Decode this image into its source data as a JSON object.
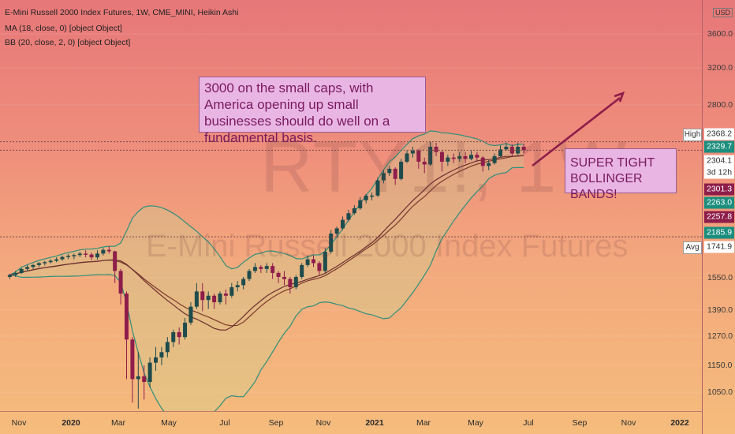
{
  "legend": {
    "title": "E-Mini Russell 2000 Index Futures, 1W, CME_MINI, Heikin Ashi",
    "ma": "MA (18, close, 0) [object Object]",
    "bb": "BB (20, close, 2, 0) [object Object]"
  },
  "watermark": {
    "symbol": "RTY1!, 1W",
    "description": "E-Mini Russell 2000 Index Futures"
  },
  "annotations": {
    "note1": "3000 on the small caps, with America opening up small businesses should do well on a fundamental basis.",
    "note2": "SUPER TIGHT BOLLINGER BANDS!"
  },
  "currency": "USD",
  "price_axis": {
    "ticks": [
      "3600.0",
      "3200.0",
      "2800.0",
      "1550.0",
      "1390.0",
      "1270.0",
      "1150.0",
      "1050.0"
    ],
    "badges": [
      {
        "label": "High",
        "value": "2368.2"
      },
      {
        "value": "2329.7",
        "color": "#1b8e7e"
      },
      {
        "value": "2304.1",
        "color": "#ffffff"
      },
      {
        "value": "3d 12h"
      },
      {
        "value": "2301.3",
        "color": "#8e1d4a"
      },
      {
        "value": "2263.0",
        "color": "#1b8e7e"
      },
      {
        "value": "2257.8",
        "color": "#8e1d4a"
      },
      {
        "value": "2185.9",
        "color": "#1b8e7e"
      },
      {
        "label": "Avg",
        "value": "1741.9"
      }
    ]
  },
  "time_axis": [
    "Nov",
    "2020",
    "Mar",
    "May",
    "Jul",
    "Sep",
    "Nov",
    "2021",
    "Mar",
    "May",
    "Jul",
    "Sep",
    "Nov",
    "2022"
  ],
  "colors": {
    "up": "#1e4b4c",
    "down": "#8e1d4a",
    "band": "#2f8f7a",
    "ma": "#6a3030",
    "arrow": "#8e1d4a"
  },
  "chart_data": {
    "type": "candlestick",
    "title": "E-Mini Russell 2000 Index Futures, 1W, CME_MINI, Heikin Ashi",
    "symbol": "RTY1!",
    "interval": "1W",
    "style": "Heikin Ashi",
    "y_scale": "log",
    "ylim": [
      1000,
      3800
    ],
    "x_start": "2019-10-20",
    "x_end": "2022-01-30",
    "candles": [
      [
        "2019-10-21",
        1530,
        1545,
        1520,
        1540
      ],
      [
        "2019-10-28",
        1540,
        1560,
        1530,
        1550
      ],
      [
        "2019-11-04",
        1550,
        1575,
        1545,
        1570
      ],
      [
        "2019-11-11",
        1570,
        1590,
        1560,
        1580
      ],
      [
        "2019-11-18",
        1580,
        1595,
        1570,
        1590
      ],
      [
        "2019-11-25",
        1590,
        1605,
        1580,
        1600
      ],
      [
        "2019-12-02",
        1600,
        1612,
        1588,
        1605
      ],
      [
        "2019-12-09",
        1605,
        1620,
        1598,
        1612
      ],
      [
        "2019-12-16",
        1612,
        1630,
        1605,
        1620
      ],
      [
        "2019-12-23",
        1620,
        1640,
        1612,
        1632
      ],
      [
        "2019-12-30",
        1632,
        1648,
        1620,
        1638
      ],
      [
        "2020-01-06",
        1638,
        1650,
        1620,
        1642
      ],
      [
        "2020-01-13",
        1642,
        1660,
        1632,
        1650
      ],
      [
        "2020-01-20",
        1650,
        1668,
        1630,
        1645
      ],
      [
        "2020-01-27",
        1645,
        1655,
        1615,
        1630
      ],
      [
        "2020-02-03",
        1630,
        1668,
        1618,
        1650
      ],
      [
        "2020-02-10",
        1650,
        1680,
        1640,
        1670
      ],
      [
        "2020-02-17",
        1670,
        1690,
        1650,
        1662
      ],
      [
        "2020-02-24",
        1662,
        1665,
        1500,
        1560
      ],
      [
        "2020-03-02",
        1560,
        1570,
        1400,
        1450
      ],
      [
        "2020-03-09",
        1450,
        1460,
        1100,
        1250
      ],
      [
        "2020-03-16",
        1250,
        1260,
        1020,
        1100
      ],
      [
        "2020-03-23",
        1100,
        1200,
        1000,
        1110
      ],
      [
        "2020-03-30",
        1110,
        1150,
        1030,
        1090
      ],
      [
        "2020-04-06",
        1090,
        1180,
        1070,
        1160
      ],
      [
        "2020-04-13",
        1160,
        1220,
        1130,
        1180
      ],
      [
        "2020-04-20",
        1180,
        1220,
        1150,
        1200
      ],
      [
        "2020-04-27",
        1200,
        1260,
        1180,
        1240
      ],
      [
        "2020-05-04",
        1240,
        1290,
        1220,
        1280
      ],
      [
        "2020-05-11",
        1280,
        1300,
        1230,
        1260
      ],
      [
        "2020-05-18",
        1260,
        1340,
        1250,
        1320
      ],
      [
        "2020-05-25",
        1320,
        1410,
        1310,
        1390
      ],
      [
        "2020-06-01",
        1390,
        1500,
        1380,
        1460
      ],
      [
        "2020-06-08",
        1460,
        1500,
        1370,
        1420
      ],
      [
        "2020-06-15",
        1420,
        1460,
        1380,
        1440
      ],
      [
        "2020-06-22",
        1440,
        1450,
        1380,
        1410
      ],
      [
        "2020-06-29",
        1410,
        1460,
        1400,
        1450
      ],
      [
        "2020-07-06",
        1450,
        1470,
        1400,
        1440
      ],
      [
        "2020-07-13",
        1440,
        1500,
        1430,
        1480
      ],
      [
        "2020-07-20",
        1480,
        1510,
        1460,
        1490
      ],
      [
        "2020-07-27",
        1490,
        1530,
        1470,
        1520
      ],
      [
        "2020-08-03",
        1520,
        1570,
        1510,
        1560
      ],
      [
        "2020-08-10",
        1560,
        1600,
        1550,
        1580
      ],
      [
        "2020-08-17",
        1580,
        1590,
        1550,
        1570
      ],
      [
        "2020-08-24",
        1570,
        1600,
        1550,
        1585
      ],
      [
        "2020-08-31",
        1585,
        1600,
        1520,
        1550
      ],
      [
        "2020-09-07",
        1550,
        1560,
        1500,
        1530
      ],
      [
        "2020-09-14",
        1530,
        1560,
        1490,
        1520
      ],
      [
        "2020-09-21",
        1520,
        1530,
        1450,
        1480
      ],
      [
        "2020-09-28",
        1480,
        1540,
        1470,
        1530
      ],
      [
        "2020-10-05",
        1530,
        1600,
        1520,
        1590
      ],
      [
        "2020-10-12",
        1590,
        1640,
        1580,
        1620
      ],
      [
        "2020-10-19",
        1620,
        1640,
        1580,
        1600
      ],
      [
        "2020-10-26",
        1600,
        1610,
        1540,
        1560
      ],
      [
        "2020-11-02",
        1560,
        1680,
        1550,
        1660
      ],
      [
        "2020-11-09",
        1660,
        1780,
        1650,
        1760
      ],
      [
        "2020-11-16",
        1760,
        1800,
        1740,
        1790
      ],
      [
        "2020-11-23",
        1790,
        1860,
        1780,
        1840
      ],
      [
        "2020-11-30",
        1840,
        1900,
        1830,
        1880
      ],
      [
        "2020-12-07",
        1880,
        1930,
        1870,
        1910
      ],
      [
        "2020-12-14",
        1910,
        1980,
        1900,
        1960
      ],
      [
        "2020-12-21",
        1960,
        2000,
        1940,
        1990
      ],
      [
        "2020-12-28",
        1990,
        2010,
        1960,
        1990
      ],
      [
        "2021-01-04",
        1990,
        2110,
        1980,
        2090
      ],
      [
        "2021-01-11",
        2090,
        2160,
        2070,
        2140
      ],
      [
        "2021-01-18",
        2140,
        2190,
        2120,
        2170
      ],
      [
        "2021-01-25",
        2170,
        2180,
        2060,
        2100
      ],
      [
        "2021-02-01",
        2100,
        2240,
        2090,
        2220
      ],
      [
        "2021-02-08",
        2220,
        2300,
        2210,
        2280
      ],
      [
        "2021-02-15",
        2280,
        2330,
        2250,
        2300
      ],
      [
        "2021-02-22",
        2300,
        2310,
        2170,
        2220
      ],
      [
        "2021-03-01",
        2220,
        2250,
        2140,
        2200
      ],
      [
        "2021-03-08",
        2200,
        2370,
        2190,
        2330
      ],
      [
        "2021-03-15",
        2330,
        2360,
        2260,
        2290
      ],
      [
        "2021-03-22",
        2290,
        2300,
        2150,
        2220
      ],
      [
        "2021-03-29",
        2220,
        2270,
        2190,
        2250
      ],
      [
        "2021-04-05",
        2250,
        2280,
        2210,
        2240
      ],
      [
        "2021-04-12",
        2240,
        2290,
        2220,
        2260
      ],
      [
        "2021-04-19",
        2260,
        2290,
        2210,
        2240
      ],
      [
        "2021-04-26",
        2240,
        2300,
        2230,
        2270
      ],
      [
        "2021-05-03",
        2270,
        2290,
        2220,
        2250
      ],
      [
        "2021-05-10",
        2250,
        2260,
        2150,
        2190
      ],
      [
        "2021-05-17",
        2190,
        2230,
        2160,
        2210
      ],
      [
        "2021-05-24",
        2210,
        2280,
        2200,
        2260
      ],
      [
        "2021-05-31",
        2260,
        2340,
        2250,
        2310
      ],
      [
        "2021-06-07",
        2310,
        2360,
        2300,
        2330
      ],
      [
        "2021-06-14",
        2330,
        2350,
        2260,
        2280
      ],
      [
        "2021-06-21",
        2280,
        2360,
        2270,
        2330
      ],
      [
        "2021-06-28",
        2330,
        2350,
        2280,
        2304
      ]
    ],
    "overlays": [
      "MA (18, close, 0)",
      "BB (20, close, 2, 0)"
    ],
    "last_price": "2304.1",
    "high": "2368.2",
    "avg": "1741.9",
    "legend_position": "top-left"
  }
}
